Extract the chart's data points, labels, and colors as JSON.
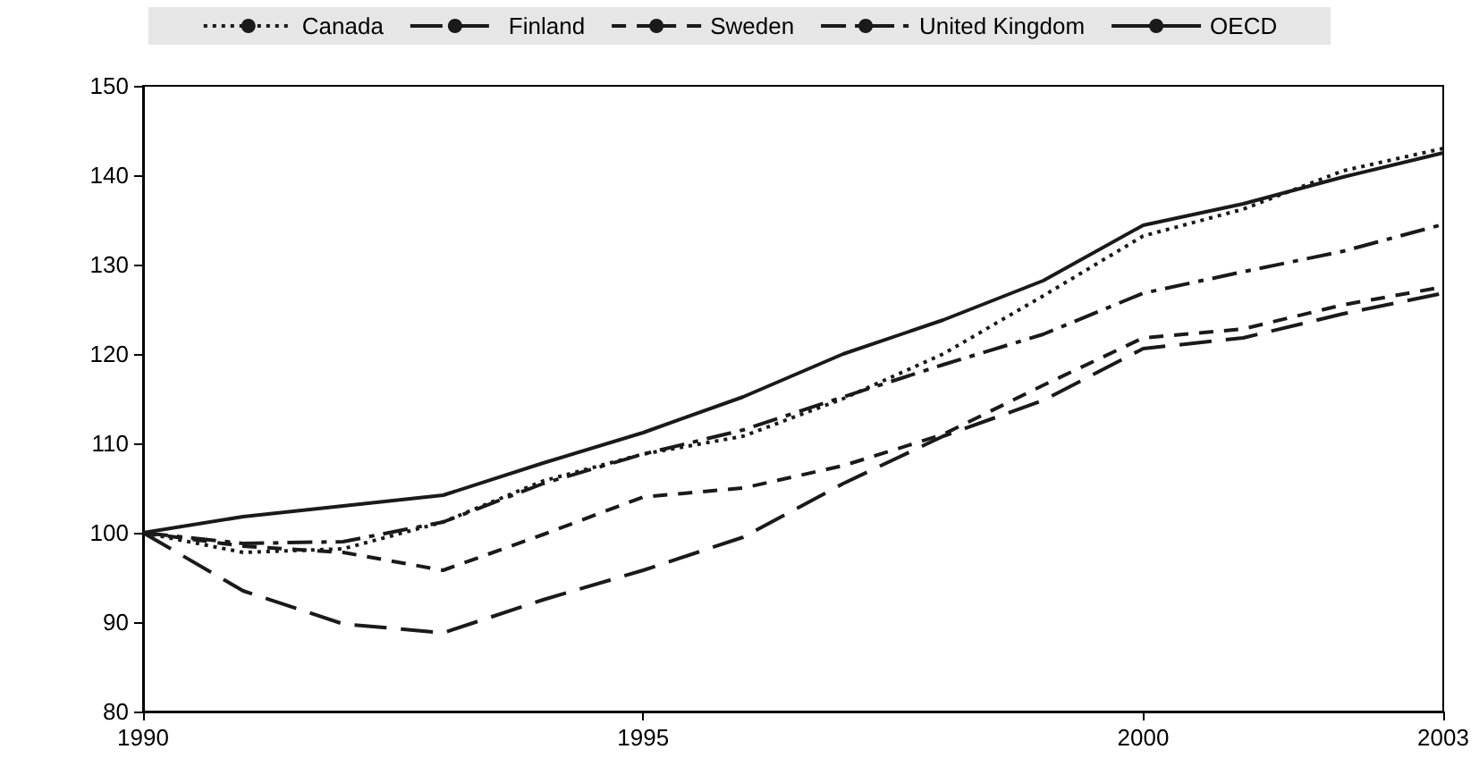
{
  "chart_data": {
    "type": "line",
    "x": [
      1990,
      1991,
      1992,
      1993,
      1994,
      1995,
      1996,
      1997,
      1998,
      1999,
      2000,
      2001,
      2002,
      2003
    ],
    "series": [
      {
        "name": "Canada",
        "color": "#1a1a1a",
        "line_style": "dotted",
        "values": [
          100,
          97.8,
          98.2,
          101.2,
          105.8,
          108.8,
          110.8,
          115,
          120,
          126.5,
          133.2,
          136.2,
          140.5,
          143
        ]
      },
      {
        "name": "Finland",
        "color": "#1a1a1a",
        "line_style": "longdash",
        "values": [
          100,
          93.5,
          89.8,
          88.8,
          92.5,
          95.8,
          99.5,
          105.5,
          110.8,
          114.8,
          120.6,
          121.8,
          124.5,
          126.8
        ]
      },
      {
        "name": "Sweden",
        "color": "#1a1a1a",
        "line_style": "dashed",
        "values": [
          100,
          98.5,
          97.8,
          95.8,
          99.8,
          104,
          105,
          107.5,
          111,
          116.5,
          121.8,
          122.8,
          125.5,
          127.5
        ]
      },
      {
        "name": "United Kingdom",
        "color": "#1a1a1a",
        "line_style": "dashdot",
        "values": [
          100,
          98.8,
          99,
          101.2,
          105.5,
          108.8,
          111.5,
          115.2,
          118.8,
          122.2,
          126.8,
          129.2,
          131.5,
          134.5
        ]
      },
      {
        "name": "OECD",
        "color": "#1a1a1a",
        "line_style": "solid",
        "values": [
          100,
          101.8,
          103,
          104.2,
          107.8,
          111.2,
          115.2,
          120,
          123.8,
          128.2,
          134.4,
          136.8,
          139.8,
          142.5
        ]
      }
    ],
    "xlim": [
      1990,
      2003
    ],
    "xticks": [
      1990,
      1995,
      2000,
      2003
    ],
    "ylim": [
      80,
      150
    ],
    "yticks": [
      80,
      90,
      100,
      110,
      120,
      130,
      140,
      150
    ],
    "grid": false,
    "legend": "top",
    "marker": "none"
  }
}
